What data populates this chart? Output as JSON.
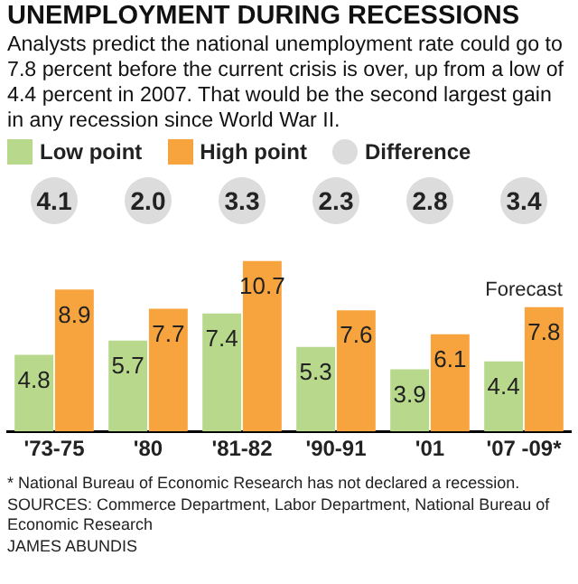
{
  "chart_data": {
    "type": "bar",
    "title": "UNEMPLOYMENT DURING RECESSIONS",
    "subtitle": "Analysts predict the national unemployment rate could go to 7.8 percent before the current crisis is over, up from a low of 4.4 percent in 2007. That would be the second largest gain in any recession since World War II.",
    "categories": [
      "'73-75",
      "'80",
      "'81-82",
      "'90-91",
      "'01",
      "'07 -09*"
    ],
    "series": [
      {
        "name": "Low point",
        "color": "#b8d98c",
        "values": [
          4.8,
          5.7,
          7.4,
          5.3,
          3.9,
          4.4
        ]
      },
      {
        "name": "High point",
        "color": "#f7a43f",
        "values": [
          8.9,
          7.7,
          10.7,
          7.6,
          6.1,
          7.8
        ]
      }
    ],
    "data_labels": true,
    "legend": "top left",
    "grid": false,
    "annotations": [
      "Difference",
      "Forecast",
      "4.1",
      "2.0",
      "3.3",
      "2.3",
      "2.8",
      "3.4",
      "* National Bureau of Economic Research has not declared a recession.",
      "SOURCES: Commerce Department, Labor Department, National Bureau of Economic Research",
      "JAMES ABUNDIS"
    ]
  }
}
